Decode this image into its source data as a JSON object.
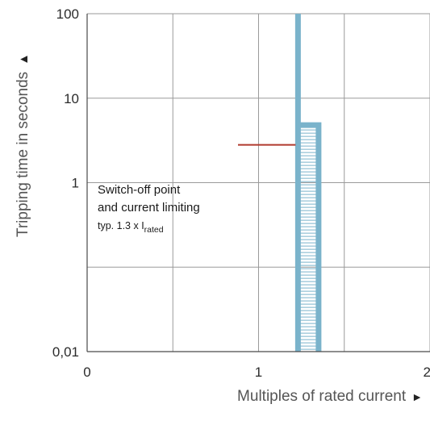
{
  "chart_data": {
    "type": "line",
    "title": "",
    "xlabel": "Multiples of rated current",
    "xlabel_arrow": "►",
    "ylabel": "Tripping time in seconds",
    "ylabel_arrow": "▲",
    "xlim": [
      0,
      2
    ],
    "ylim": [
      0.01,
      100
    ],
    "yscale": "log",
    "grid": true,
    "x_ticks": [
      {
        "value": 0,
        "label": "0"
      },
      {
        "value": 1,
        "label": "1"
      },
      {
        "value": 2,
        "label": "2"
      }
    ],
    "y_ticks": [
      {
        "value": 0.01,
        "label": "0,01"
      },
      {
        "value": 1,
        "label": "1"
      },
      {
        "value": 10,
        "label": "10"
      },
      {
        "value": 100,
        "label": "100"
      }
    ],
    "x_grid": [
      0.5,
      1,
      1.5,
      2
    ],
    "y_grid": [
      0.1,
      1,
      10,
      100
    ],
    "series": [
      {
        "x": [
          1.23,
          1.23
        ],
        "y": [
          0.01,
          100
        ],
        "color": "#7ab3cb"
      },
      {
        "x": [
          1.23,
          1.35,
          1.35
        ],
        "y": [
          4.8,
          4.8,
          0.01
        ],
        "color": "#7ab3cb"
      }
    ],
    "band": {
      "x_from": 1.23,
      "x_to": 1.35,
      "y_from": 0.01,
      "y_to": 4.8,
      "color": "#7ab3cb"
    },
    "annotation": {
      "line1": "Switch-off point",
      "line2": "and current limiting",
      "line3_prefix": "typ. 1.3 x I",
      "line3_sub": "rated",
      "pointer_color": "#b03a2e",
      "pointer_y": 2.8,
      "pointer_x_from": 0.88,
      "pointer_x_to": 1.23
    }
  }
}
